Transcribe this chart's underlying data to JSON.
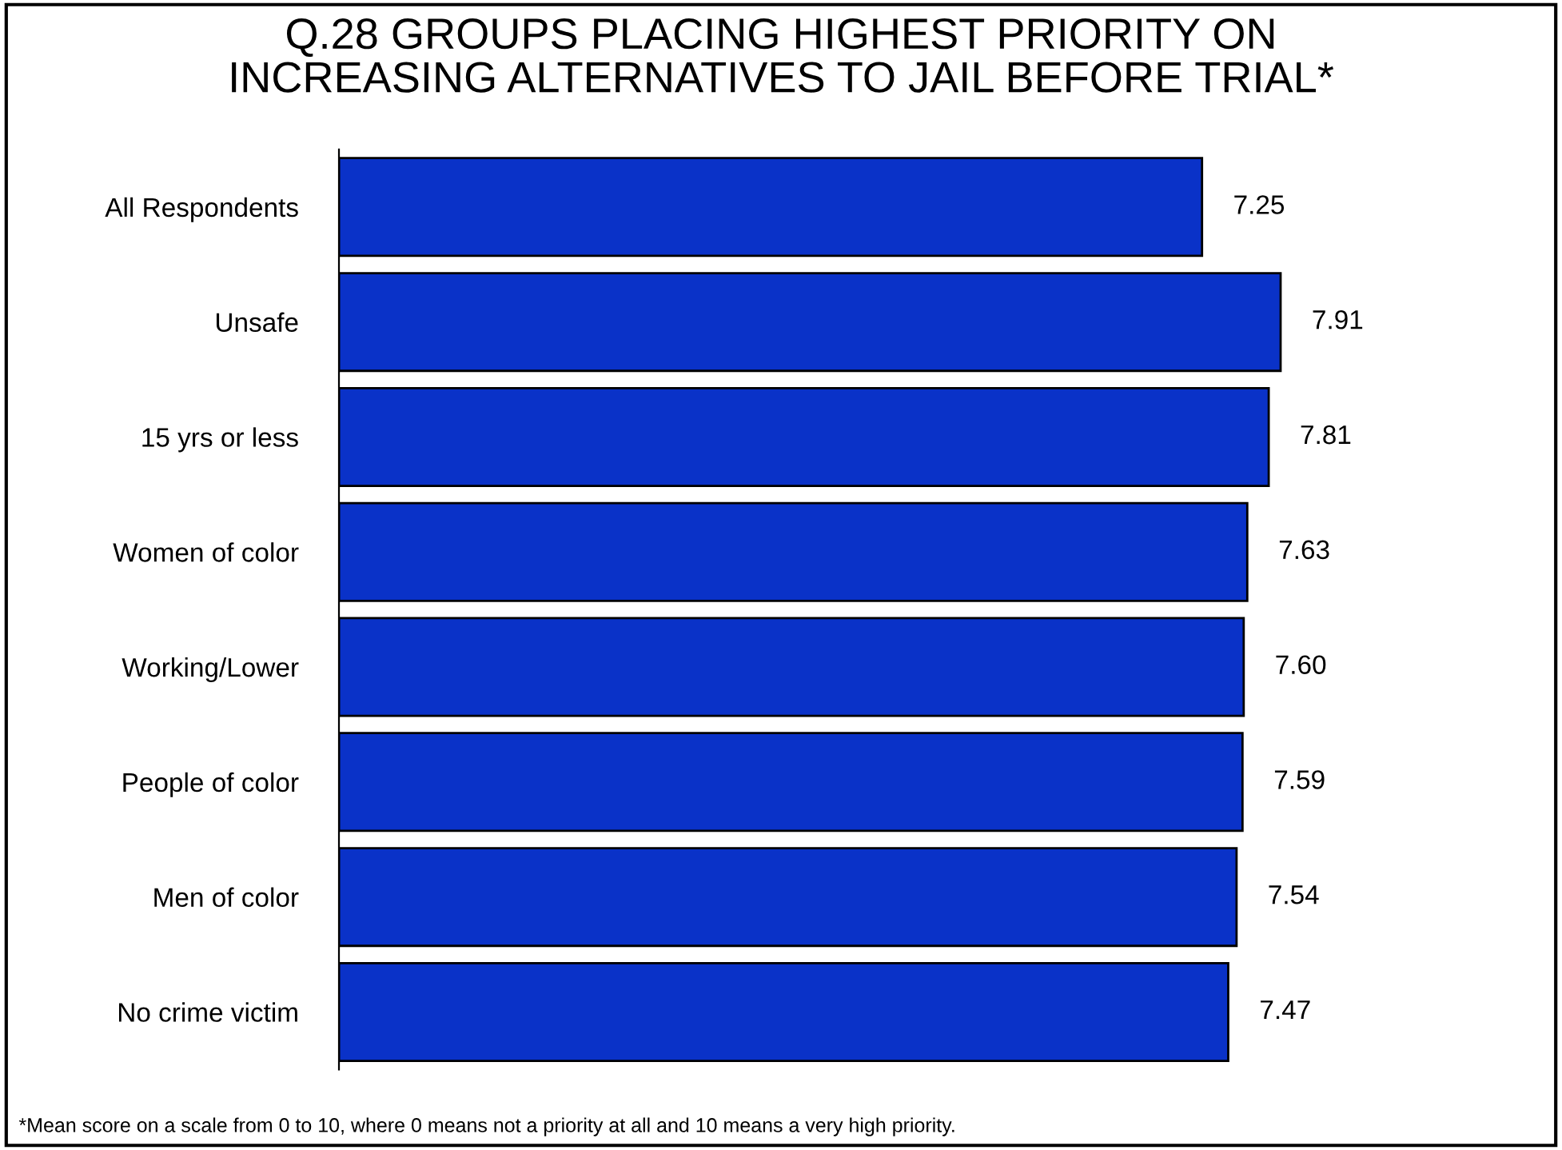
{
  "chart_data": {
    "type": "bar",
    "orientation": "horizontal",
    "title": "Q.28 GROUPS PLACING HIGHEST PRIORITY ON\nINCREASING ALTERNATIVES TO JAIL BEFORE TRIAL*",
    "categories": [
      "All Respondents",
      "Unsafe",
      "15 yrs or less",
      "Women of color",
      "Working/Lower",
      "People of color",
      "Men of color",
      "No crime victim"
    ],
    "values": [
      7.25,
      7.91,
      7.81,
      7.63,
      7.6,
      7.59,
      7.54,
      7.47
    ],
    "value_labels": [
      "7.25",
      "7.91",
      "7.81",
      "7.63",
      "7.60",
      "7.59",
      "7.54",
      "7.47"
    ],
    "color": "#0a32c8",
    "tick_labels": "y",
    "grid": false,
    "legend": false,
    "annotations": [
      "*Mean score on a scale from 0 to 10, where 0 means not a priority at all and 10 means a very high priority."
    ]
  }
}
